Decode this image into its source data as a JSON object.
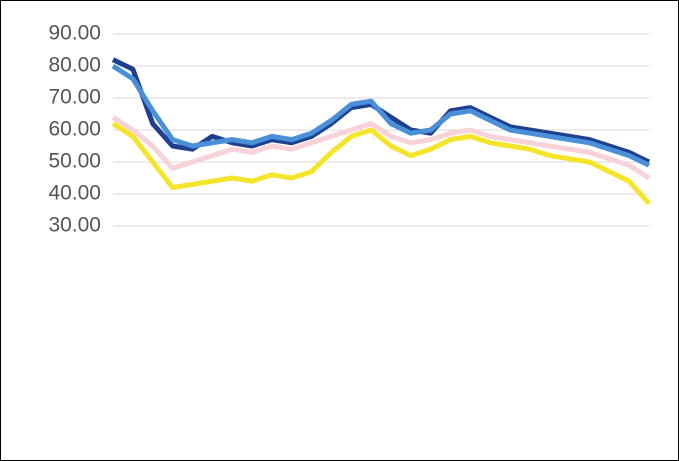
{
  "chart_data": {
    "type": "line",
    "ylim": [
      25,
      95
    ],
    "yticks": [
      {
        "value": 30,
        "label": "30.00"
      },
      {
        "value": 40,
        "label": "40.00"
      },
      {
        "value": 50,
        "label": "50.00"
      },
      {
        "value": 60,
        "label": "60.00"
      },
      {
        "value": 70,
        "label": "70.00"
      },
      {
        "value": 80,
        "label": "80.00"
      },
      {
        "value": 90,
        "label": "90.00"
      }
    ],
    "grid": true,
    "series": [
      {
        "color": "#1f3f8f",
        "values": [
          82,
          79,
          62,
          55,
          54,
          58,
          56,
          55,
          57,
          56,
          58,
          62,
          67,
          68,
          64,
          60,
          59,
          66,
          67,
          64,
          61,
          60,
          59,
          58,
          57,
          55,
          53,
          50
        ]
      },
      {
        "color": "#4a90d9",
        "values": [
          80,
          76,
          66,
          57,
          55,
          56,
          57,
          56,
          58,
          57,
          59,
          63,
          68,
          69,
          62,
          59,
          60,
          65,
          66,
          63,
          60,
          59,
          58,
          57,
          56,
          54,
          52,
          49
        ]
      },
      {
        "color": "#f7d2d8",
        "values": [
          64,
          60,
          55,
          48,
          50,
          52,
          54,
          53,
          55,
          54,
          56,
          58,
          60,
          62,
          58,
          56,
          57,
          59,
          60,
          58,
          57,
          56,
          55,
          54,
          53,
          51,
          49,
          45
        ]
      },
      {
        "color": "#f5e52a",
        "values": [
          62,
          58,
          50,
          42,
          43,
          44,
          45,
          44,
          46,
          45,
          47,
          53,
          58,
          60,
          55,
          52,
          54,
          57,
          58,
          56,
          55,
          54,
          52,
          51,
          50,
          47,
          44,
          37
        ]
      }
    ]
  }
}
